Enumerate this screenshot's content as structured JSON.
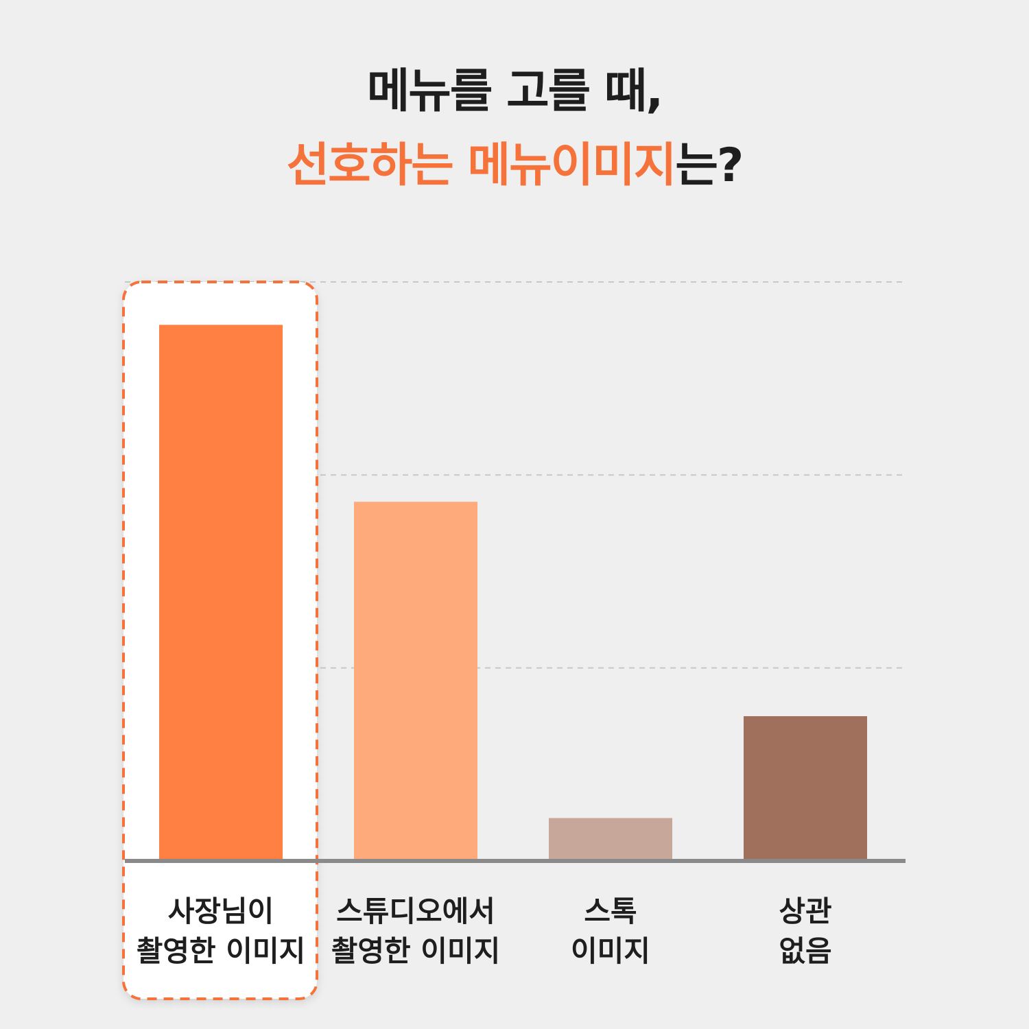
{
  "title": {
    "line1": "메뉴를 고를 때,",
    "line2_accent": "선호하는 메뉴이미지",
    "line2_rest": "는?"
  },
  "colors": {
    "accent": "#f5733a",
    "highlight_border": "#f5733a",
    "baseline": "#8a8a8a",
    "gridline": "#c8c8c8"
  },
  "chart_data": {
    "type": "bar",
    "categories": [
      [
        "사장님이",
        "촬영한 이미지"
      ],
      [
        "스튜디오에서",
        "촬영한 이미지"
      ],
      [
        "스톡",
        "이미지"
      ],
      [
        "상관",
        "없음"
      ]
    ],
    "values": [
      100,
      67,
      8,
      27
    ],
    "bar_colors": [
      "#ff8042",
      "#ffaa7a",
      "#c7a79a",
      "#a0705c"
    ],
    "highlighted_index": 0,
    "ylim": [
      0,
      108
    ],
    "grid": true,
    "gridlines_at": [
      36,
      72,
      108
    ],
    "xlabel": "",
    "ylabel": ""
  }
}
